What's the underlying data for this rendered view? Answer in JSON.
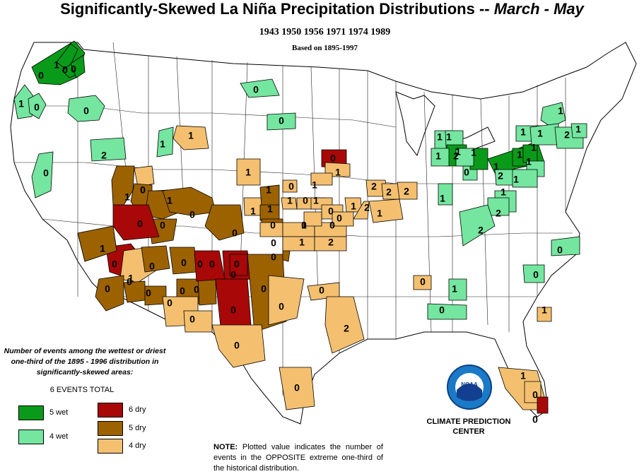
{
  "title": {
    "main": "Significantly-Skewed La Niña Precipitation Distributions  --",
    "period": "March - May"
  },
  "years": "1943  1950  1956  1971  1974  1989",
  "based_on": "Based on 1895-1997",
  "legend": {
    "description": "Number of events among the wettest or driest one-third of the 1895 - 1996 distribution in significantly-skewed areas:",
    "total": "6 EVENTS TOTAL",
    "items": [
      {
        "label": "5 wet",
        "color": "#0a9a1a"
      },
      {
        "label": "4 wet",
        "color": "#74e6a0"
      },
      {
        "label": "6 dry",
        "color": "#a80808"
      },
      {
        "label": "5 dry",
        "color": "#9c6200"
      },
      {
        "label": "4 dry",
        "color": "#f4c070"
      }
    ]
  },
  "logo_text": "NOAA",
  "credit": {
    "line1": "CLIMATE PREDICTION",
    "line2": "CENTER"
  },
  "note": {
    "label": "NOTE:",
    "text": "Plotted value indicates the number of events in the OPPOSITE extreme one-third of the historical distribution."
  },
  "colors": {
    "wet5": "#0a9a1a",
    "wet4": "#74e6a0",
    "dry6": "#a80808",
    "dry5": "#9c6200",
    "dry4": "#f4c070",
    "land": "#ffffff",
    "boundary": "#000000"
  },
  "regions": [
    {
      "cls": "wet5",
      "value": "0"
    },
    {
      "cls": "wet5",
      "value": "1"
    },
    {
      "cls": "wet5",
      "value": "0"
    },
    {
      "cls": "wet5",
      "value": "0"
    },
    {
      "cls": "wet4",
      "value": "1"
    },
    {
      "cls": "wet4",
      "value": "0"
    },
    {
      "cls": "wet4",
      "value": "0"
    },
    {
      "cls": "wet4",
      "value": "0"
    },
    {
      "cls": "wet4",
      "value": "2"
    },
    {
      "cls": "wet4",
      "value": "0"
    },
    {
      "cls": "wet4",
      "value": "1"
    },
    {
      "cls": "wet4",
      "value": "0"
    },
    {
      "cls": "wet4",
      "value": "1"
    },
    {
      "cls": "dry6",
      "value": "0"
    },
    {
      "cls": "dry4",
      "value": "1"
    },
    {
      "cls": "dry4",
      "value": "1"
    },
    {
      "cls": "dry4",
      "value": "0"
    },
    {
      "cls": "dry4",
      "value": "1"
    },
    {
      "cls": "dry4",
      "value": "1"
    },
    {
      "cls": "dry4",
      "value": "1"
    },
    {
      "cls": "dry5",
      "value": "1"
    },
    {
      "cls": "dry5",
      "value": "0"
    },
    {
      "cls": "dry5",
      "value": "1"
    },
    {
      "cls": "dry5",
      "value": "0"
    },
    {
      "cls": "dry5",
      "value": "0"
    },
    {
      "cls": "dry5",
      "value": "0"
    },
    {
      "cls": "dry6",
      "value": "0"
    },
    {
      "cls": "dry6",
      "value": "0"
    },
    {
      "cls": "dry4",
      "value": "1"
    },
    {
      "cls": "dry5",
      "value": "1"
    },
    {
      "cls": "dry5",
      "value": "0"
    },
    {
      "cls": "dry5",
      "value": "0"
    },
    {
      "cls": "dry5",
      "value": "0"
    },
    {
      "cls": "dry5",
      "value": "0"
    },
    {
      "cls": "dry5",
      "value": "0"
    },
    {
      "cls": "dry5",
      "value": "0"
    },
    {
      "cls": "dry5",
      "value": "0"
    },
    {
      "cls": "dry5",
      "value": "0"
    },
    {
      "cls": "dry6",
      "value": "0"
    },
    {
      "cls": "dry6",
      "value": "0"
    },
    {
      "cls": "dry6",
      "value": "0"
    },
    {
      "cls": "dry6",
      "value": "0"
    },
    {
      "cls": "dry5",
      "value": "0"
    },
    {
      "cls": "dry5",
      "value": "0"
    },
    {
      "cls": "dry4",
      "value": "0"
    },
    {
      "cls": "dry4",
      "value": "0"
    },
    {
      "cls": "dry4",
      "value": "0"
    },
    {
      "cls": "dry4",
      "value": "0"
    },
    {
      "cls": "dry4",
      "value": "0"
    },
    {
      "cls": "dry5",
      "value": "1"
    },
    {
      "cls": "dry5",
      "value": "1"
    },
    {
      "cls": "dry5",
      "value": "0"
    },
    {
      "cls": "dry4",
      "value": "0"
    },
    {
      "cls": "dry4",
      "value": "1"
    },
    {
      "cls": "dry4",
      "value": "0"
    },
    {
      "cls": "dry4",
      "value": "1"
    },
    {
      "cls": "dry4",
      "value": "1"
    },
    {
      "cls": "dry4",
      "value": "1"
    },
    {
      "cls": "dry4",
      "value": "0"
    },
    {
      "cls": "dry4",
      "value": "1"
    },
    {
      "cls": "dry4",
      "value": "0"
    },
    {
      "cls": "dry4",
      "value": "1"
    },
    {
      "cls": "dry4",
      "value": "2"
    },
    {
      "cls": "dry4",
      "value": "0"
    },
    {
      "cls": "dry4",
      "value": "0"
    },
    {
      "cls": "dry4",
      "value": "0"
    },
    {
      "cls": "dry4",
      "value": "0"
    },
    {
      "cls": "dry4",
      "value": "1"
    },
    {
      "cls": "dry4",
      "value": "2"
    },
    {
      "cls": "dry4",
      "value": "2"
    },
    {
      "cls": "dry4",
      "value": "2"
    },
    {
      "cls": "dry4",
      "value": "2"
    },
    {
      "cls": "dry4",
      "value": "1"
    },
    {
      "cls": "dry4",
      "value": "2"
    },
    {
      "cls": "dry4",
      "value": "0"
    },
    {
      "cls": "dry4",
      "value": "1"
    },
    {
      "cls": "wet4",
      "value": "1"
    },
    {
      "cls": "wet4",
      "value": "1"
    },
    {
      "cls": "wet4",
      "value": "0"
    },
    {
      "cls": "wet5",
      "value": "1"
    },
    {
      "cls": "wet5",
      "value": "1"
    },
    {
      "cls": "wet5",
      "value": "1"
    },
    {
      "cls": "wet5",
      "value": "1"
    },
    {
      "cls": "wet5",
      "value": "1"
    },
    {
      "cls": "wet4",
      "value": "1"
    },
    {
      "cls": "wet4",
      "value": "1"
    },
    {
      "cls": "wet4",
      "value": "2"
    },
    {
      "cls": "wet4",
      "value": "1"
    },
    {
      "cls": "wet4",
      "value": "1"
    },
    {
      "cls": "wet4",
      "value": "2"
    },
    {
      "cls": "wet4",
      "value": "1"
    },
    {
      "cls": "wet4",
      "value": "2"
    },
    {
      "cls": "wet4",
      "value": "1"
    },
    {
      "cls": "wet4",
      "value": "1"
    },
    {
      "cls": "wet4",
      "value": "2"
    },
    {
      "cls": "wet4",
      "value": "2"
    },
    {
      "cls": "wet4",
      "value": "0"
    },
    {
      "cls": "wet4",
      "value": "0"
    },
    {
      "cls": "wet4",
      "value": "1"
    },
    {
      "cls": "wet4",
      "value": "1"
    },
    {
      "cls": "wet4",
      "value": "0"
    },
    {
      "cls": "dry4",
      "value": "1"
    },
    {
      "cls": "dry4",
      "value": "0"
    },
    {
      "cls": "dry6",
      "value": "0"
    }
  ]
}
